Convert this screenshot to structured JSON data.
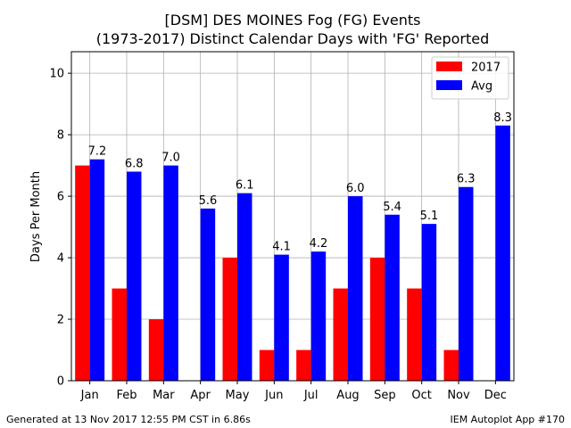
{
  "chart_data": {
    "type": "bar",
    "title": "[DSM] DES MOINES Fog (FG) Events",
    "subtitle": "(1973-2017) Distinct Calendar Days with 'FG' Reported",
    "xlabel": "",
    "ylabel": "Days Per Month",
    "ylim": [
      0,
      10.7
    ],
    "yticks": [
      0,
      2,
      4,
      6,
      8,
      10
    ],
    "grid": true,
    "legend_position": "top-right",
    "categories": [
      "Jan",
      "Feb",
      "Mar",
      "Apr",
      "May",
      "Jun",
      "Jul",
      "Aug",
      "Sep",
      "Oct",
      "Nov",
      "Dec"
    ],
    "series": [
      {
        "name": "2017",
        "color": "#ff0000",
        "values": [
          7,
          3,
          2,
          0,
          4,
          1,
          1,
          3,
          4,
          3,
          1,
          0
        ]
      },
      {
        "name": "Avg",
        "color": "#0000ff",
        "values": [
          7.2,
          6.8,
          7.0,
          5.6,
          6.1,
          4.1,
          4.2,
          6.0,
          5.4,
          5.1,
          6.3,
          8.3
        ]
      }
    ],
    "data_labels": [
      "7.2",
      "6.8",
      "7.0",
      "5.6",
      "6.1",
      "4.1",
      "4.2",
      "6.0",
      "5.4",
      "5.1",
      "6.3",
      "8.3"
    ]
  },
  "footer": {
    "left": "Generated at 13 Nov 2017 12:55 PM CST in 6.86s",
    "right": "IEM Autoplot App #170"
  }
}
